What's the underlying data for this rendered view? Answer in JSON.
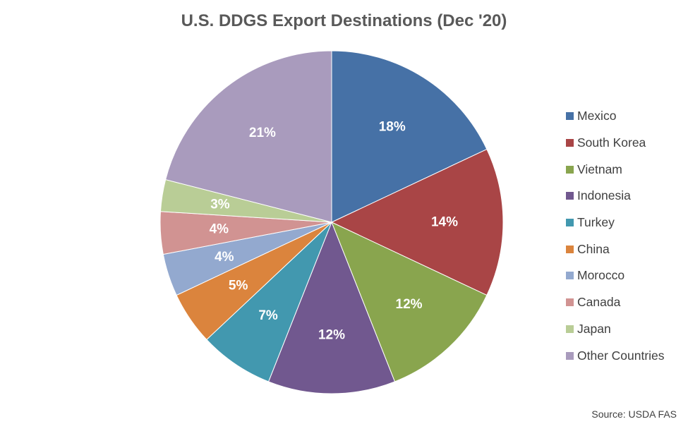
{
  "chart_data": {
    "type": "pie",
    "title": "U.S. DDGS Export Destinations (Dec '20)",
    "start_angle_deg": 0,
    "direction": "clockwise",
    "legend_position": "right",
    "slices": [
      {
        "label": "Mexico",
        "value": 18,
        "display": "18%",
        "color": "#4671a6"
      },
      {
        "label": "South Korea",
        "value": 14,
        "display": "14%",
        "color": "#a94546"
      },
      {
        "label": "Vietnam",
        "value": 12,
        "display": "12%",
        "color": "#89a54e"
      },
      {
        "label": "Indonesia",
        "value": 12,
        "display": "12%",
        "color": "#71588f"
      },
      {
        "label": "Turkey",
        "value": 7,
        "display": "7%",
        "color": "#4298af"
      },
      {
        "label": "China",
        "value": 5,
        "display": "5%",
        "color": "#db843d"
      },
      {
        "label": "Morocco",
        "value": 4,
        "display": "4%",
        "color": "#93a9cf"
      },
      {
        "label": "Canada",
        "value": 4,
        "display": "4%",
        "color": "#d19392"
      },
      {
        "label": "Japan",
        "value": 3,
        "display": "3%",
        "color": "#b9cd96"
      },
      {
        "label": "Other Countries",
        "value": 21,
        "display": "21%",
        "color": "#a99bbd"
      }
    ]
  },
  "source": "Source: USDA FAS"
}
